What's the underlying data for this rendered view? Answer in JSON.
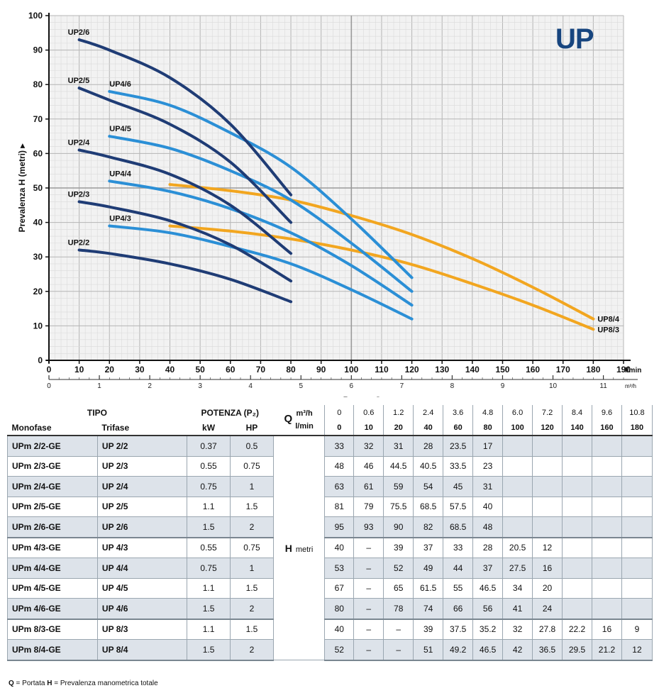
{
  "chart_data": {
    "type": "line",
    "logo": "UP",
    "ylabel": "Prevalenza H (metri)",
    "xlabel": "Portata Q",
    "ylim": [
      0,
      100
    ],
    "xlim": [
      0,
      190
    ],
    "y_ticks": [
      "0",
      "10",
      "20",
      "30",
      "40",
      "50",
      "60",
      "70",
      "80",
      "90",
      "100"
    ],
    "x_ticks": [
      "0",
      "10",
      "20",
      "30",
      "40",
      "50",
      "60",
      "70",
      "80",
      "90",
      "100",
      "110",
      "120",
      "130",
      "140",
      "150",
      "160",
      "170",
      "180",
      "190"
    ],
    "x_unit": "l/min",
    "x2_ticks": [
      "0",
      "1",
      "2",
      "3",
      "4",
      "5",
      "6",
      "7",
      "8",
      "9",
      "10",
      "11"
    ],
    "x2_unit": "m³/h",
    "series": [
      {
        "name": "UP2/2",
        "color": "#1f3c75",
        "label_side": "left",
        "x": [
          10,
          20,
          40,
          60,
          80
        ],
        "y": [
          32,
          31,
          28,
          23.5,
          17
        ]
      },
      {
        "name": "UP2/3",
        "color": "#1f3c75",
        "label_side": "left",
        "x": [
          10,
          20,
          40,
          60,
          80
        ],
        "y": [
          46,
          44.5,
          40.5,
          33.5,
          23
        ]
      },
      {
        "name": "UP2/4",
        "color": "#1f3c75",
        "label_side": "left",
        "x": [
          10,
          20,
          40,
          60,
          80
        ],
        "y": [
          61,
          59,
          54,
          45,
          31
        ]
      },
      {
        "name": "UP2/5",
        "color": "#1f3c75",
        "label_side": "left",
        "x": [
          10,
          20,
          40,
          60,
          80
        ],
        "y": [
          79,
          75.5,
          68.5,
          57.5,
          40
        ]
      },
      {
        "name": "UP2/6",
        "color": "#1f3c75",
        "label_side": "left",
        "x": [
          10,
          20,
          40,
          60,
          80
        ],
        "y": [
          93,
          90,
          82,
          68.5,
          48
        ]
      },
      {
        "name": "UP4/3",
        "color": "#2b8fd6",
        "label_side": "left",
        "x": [
          20,
          40,
          60,
          80,
          100,
          120
        ],
        "y": [
          39,
          37,
          33,
          28,
          20.5,
          12
        ]
      },
      {
        "name": "UP4/4",
        "color": "#2b8fd6",
        "label_side": "left",
        "x": [
          20,
          40,
          60,
          80,
          100,
          120
        ],
        "y": [
          52,
          49,
          44,
          37,
          27.5,
          16
        ]
      },
      {
        "name": "UP4/5",
        "color": "#2b8fd6",
        "label_side": "left",
        "x": [
          20,
          40,
          60,
          80,
          100,
          120
        ],
        "y": [
          65,
          61.5,
          55,
          46.5,
          34,
          20
        ]
      },
      {
        "name": "UP4/6",
        "color": "#2b8fd6",
        "label_side": "left",
        "x": [
          20,
          40,
          60,
          80,
          100,
          120
        ],
        "y": [
          78,
          74,
          66,
          56,
          41,
          24
        ]
      },
      {
        "name": "UP8/3",
        "color": "#f2a620",
        "label_side": "right",
        "x": [
          40,
          60,
          80,
          100,
          120,
          140,
          160,
          180
        ],
        "y": [
          39,
          37.5,
          35.2,
          32,
          27.8,
          22.2,
          16,
          9
        ]
      },
      {
        "name": "UP8/4",
        "color": "#f2a620",
        "label_side": "right",
        "x": [
          40,
          60,
          80,
          100,
          120,
          140,
          160,
          180
        ],
        "y": [
          51,
          49.2,
          46.5,
          42,
          36.5,
          29.5,
          21.2,
          12
        ]
      }
    ]
  },
  "table": {
    "tipo": "TIPO",
    "potenza": "POTENZA (P₂)",
    "monofase": "Monofase",
    "trifase": "Trifase",
    "kw": "kW",
    "hp": "HP",
    "q_letter": "Q",
    "unit_m3h": "m³/h",
    "unit_lmin": "l/min",
    "h_letter": "H",
    "h_unit": "metri",
    "q_m3h": [
      "0",
      "0.6",
      "1.2",
      "2.4",
      "3.6",
      "4.8",
      "6.0",
      "7.2",
      "8.4",
      "9.6",
      "10.8"
    ],
    "q_lmin": [
      "0",
      "10",
      "20",
      "40",
      "60",
      "80",
      "100",
      "120",
      "140",
      "160",
      "180"
    ],
    "rows": [
      {
        "mono": "UPm 2/2-GE",
        "tri": "UP 2/2",
        "kw": "0.37",
        "hp": "0.5",
        "h": [
          "33",
          "32",
          "31",
          "28",
          "23.5",
          "17",
          "",
          "",
          "",
          "",
          ""
        ]
      },
      {
        "mono": "UPm 2/3-GE",
        "tri": "UP 2/3",
        "kw": "0.55",
        "hp": "0.75",
        "h": [
          "48",
          "46",
          "44.5",
          "40.5",
          "33.5",
          "23",
          "",
          "",
          "",
          "",
          ""
        ]
      },
      {
        "mono": "UPm 2/4-GE",
        "tri": "UP 2/4",
        "kw": "0.75",
        "hp": "1",
        "h": [
          "63",
          "61",
          "59",
          "54",
          "45",
          "31",
          "",
          "",
          "",
          "",
          ""
        ]
      },
      {
        "mono": "UPm 2/5-GE",
        "tri": "UP 2/5",
        "kw": "1.1",
        "hp": "1.5",
        "h": [
          "81",
          "79",
          "75.5",
          "68.5",
          "57.5",
          "40",
          "",
          "",
          "",
          "",
          ""
        ]
      },
      {
        "mono": "UPm 2/6-GE",
        "tri": "UP 2/6",
        "kw": "1.5",
        "hp": "2",
        "h": [
          "95",
          "93",
          "90",
          "82",
          "68.5",
          "48",
          "",
          "",
          "",
          "",
          ""
        ]
      },
      {
        "mono": "UPm 4/3-GE",
        "tri": "UP 4/3",
        "kw": "0.55",
        "hp": "0.75",
        "h": [
          "40",
          "–",
          "39",
          "37",
          "33",
          "28",
          "20.5",
          "12",
          "",
          "",
          ""
        ]
      },
      {
        "mono": "UPm 4/4-GE",
        "tri": "UP 4/4",
        "kw": "0.75",
        "hp": "1",
        "h": [
          "53",
          "–",
          "52",
          "49",
          "44",
          "37",
          "27.5",
          "16",
          "",
          "",
          ""
        ]
      },
      {
        "mono": "UPm 4/5-GE",
        "tri": "UP 4/5",
        "kw": "1.1",
        "hp": "1.5",
        "h": [
          "67",
          "–",
          "65",
          "61.5",
          "55",
          "46.5",
          "34",
          "20",
          "",
          "",
          ""
        ]
      },
      {
        "mono": "UPm 4/6-GE",
        "tri": "UP 4/6",
        "kw": "1.5",
        "hp": "2",
        "h": [
          "80",
          "–",
          "78",
          "74",
          "66",
          "56",
          "41",
          "24",
          "",
          "",
          ""
        ]
      },
      {
        "mono": "UPm 8/3-GE",
        "tri": "UP 8/3",
        "kw": "1.1",
        "hp": "1.5",
        "h": [
          "40",
          "–",
          "–",
          "39",
          "37.5",
          "35.2",
          "32",
          "27.8",
          "22.2",
          "16",
          "9"
        ]
      },
      {
        "mono": "UPm 8/4-GE",
        "tri": "UP 8/4",
        "kw": "1.5",
        "hp": "2",
        "h": [
          "52",
          "–",
          "–",
          "51",
          "49.2",
          "46.5",
          "42",
          "36.5",
          "29.5",
          "21.2",
          "12"
        ]
      }
    ],
    "note_q": "Q",
    "note_q_text": " = Portata  ",
    "note_h": "H",
    "note_h_text": " = Prevalenza manometrica totale"
  }
}
